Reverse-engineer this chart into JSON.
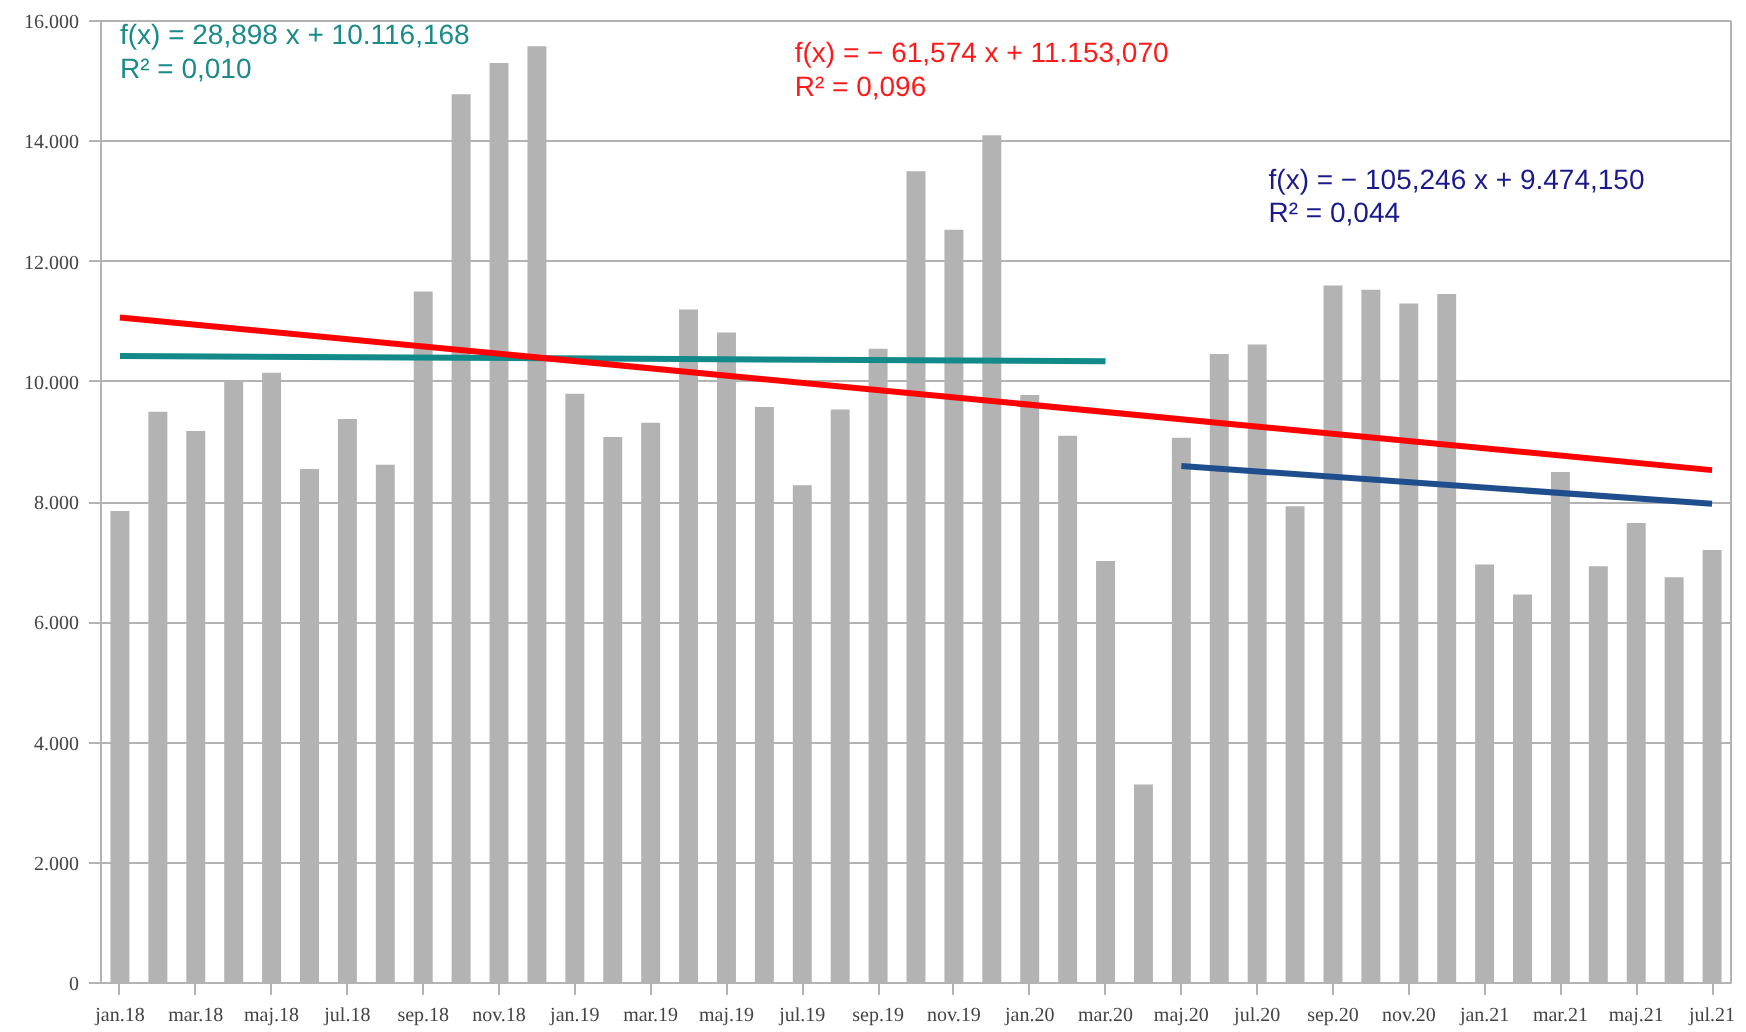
{
  "chart_data": {
    "type": "bar",
    "categories": [
      "jan.18",
      null,
      "mar.18",
      null,
      "maj.18",
      null,
      "jul.18",
      null,
      "sep.18",
      null,
      "nov.18",
      null,
      "jan.19",
      null,
      "mar.19",
      null,
      "maj.19",
      null,
      "jul.19",
      null,
      "sep.19",
      null,
      "nov.19",
      null,
      "jan.20",
      null,
      "mar.20",
      null,
      "maj.20",
      null,
      "jul.20",
      null,
      "sep.20",
      null,
      "nov.20",
      null,
      "jan.21",
      null,
      "mar.21",
      null,
      "maj.21",
      null,
      "jul.21"
    ],
    "series": [
      {
        "color": "#b3b3b3",
        "values": [
          7850,
          9500,
          9180,
          10000,
          10150,
          8550,
          9380,
          8620,
          11500,
          14780,
          15300,
          15580,
          9800,
          9080,
          9320,
          11200,
          10820,
          9580,
          8280,
          9540,
          10550,
          13500,
          12530,
          14100,
          9780,
          9100,
          7020,
          3300,
          9070,
          10460,
          10620,
          7930,
          11600,
          11530,
          11300,
          11460,
          6960,
          6460,
          8500,
          6930,
          7650,
          6750,
          7200
        ]
      },
      {
        "type": "line",
        "color": "#138a8a",
        "x": [
          "jan.18",
          "mar.20"
        ],
        "values": [
          10430,
          10340
        ]
      },
      {
        "type": "line",
        "color": "#ff0000",
        "x": [
          "jan.18",
          "jul.21"
        ],
        "values": [
          11070,
          8530
        ]
      },
      {
        "type": "line",
        "color": "#1f4e8c",
        "x": [
          "maj.20",
          "jul.21"
        ],
        "values": [
          8600,
          7970
        ]
      }
    ],
    "annotations": [
      "f(x) = 28,898 x + 10.116,168\nR² = 0,010",
      "f(x) = − 61,574 x + 11.153,070\nR² = 0,096",
      "f(x) = − 105,246 x + 9.474,150\nR² = 0,044"
    ],
    "ylim": [
      0,
      16000
    ],
    "yticks": [
      0,
      {
        "value": 2000,
        "label": "2.000"
      },
      {
        "value": 4000,
        "label": "4.000"
      },
      {
        "value": 6000,
        "label": "6.000"
      },
      {
        "value": 8000,
        "label": "8.000"
      },
      {
        "value": 10000,
        "label": "10.000"
      },
      {
        "value": 12000,
        "label": "12.000"
      },
      {
        "value": 14000,
        "label": "14.000"
      },
      {
        "value": 16000,
        "label": "16.000"
      }
    ],
    "grid": "y"
  }
}
